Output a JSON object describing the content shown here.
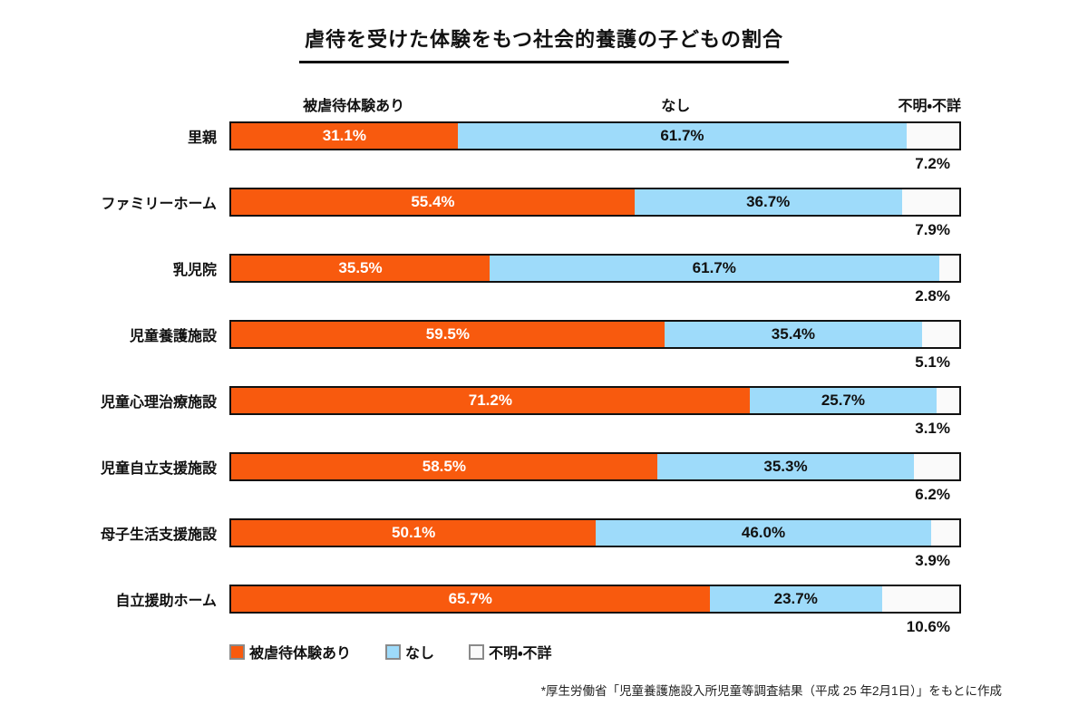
{
  "title": "虐待を受けた体験をもつ社会的養護の子どもの割合",
  "column_headers": {
    "abused": "被虐待体験あり",
    "none": "なし",
    "unknown": "不明・不詳"
  },
  "legend": [
    {
      "label": "被虐待体験あり",
      "color": "#f85a0e"
    },
    {
      "label": "なし",
      "color": "#9edbfa"
    },
    {
      "label": "不明・不詳",
      "color": "#fafafa"
    }
  ],
  "footnote": "*厚生労働省「児童養護施設入所児童等調査結果（平成 25 年2月1日）」をもとに作成",
  "colors": {
    "abused": "#f85a0e",
    "none": "#9edbfa",
    "unknown": "#fafafa",
    "bar_border": "#111111",
    "background": "#ffffff"
  },
  "chart_data": {
    "type": "bar",
    "orientation": "horizontal",
    "stacked": true,
    "title": "虐待を受けた体験をもつ社会的養護の子どもの割合",
    "categories": [
      "里親",
      "ファミリーホーム",
      "乳児院",
      "児童養護施設",
      "児童心理治療施設",
      "児童自立支援施設",
      "母子生活支援施設",
      "自立援助ホーム"
    ],
    "series": [
      {
        "name": "被虐待体験あり",
        "color": "#f85a0e",
        "values": [
          31.1,
          55.4,
          35.5,
          59.5,
          71.2,
          58.5,
          50.1,
          65.7
        ]
      },
      {
        "name": "なし",
        "color": "#9edbfa",
        "values": [
          61.7,
          36.7,
          61.7,
          35.4,
          25.7,
          35.3,
          46.0,
          23.7
        ]
      },
      {
        "name": "不明・不詳",
        "color": "#fafafa",
        "values": [
          7.2,
          7.9,
          2.8,
          5.1,
          3.1,
          6.2,
          3.9,
          10.6
        ]
      }
    ],
    "xlim": [
      0,
      100
    ],
    "value_format": "percent_one_decimal",
    "grid": false,
    "legend_position": "bottom-left",
    "note": "不明・不詳 の値はバーの右下に表示"
  }
}
